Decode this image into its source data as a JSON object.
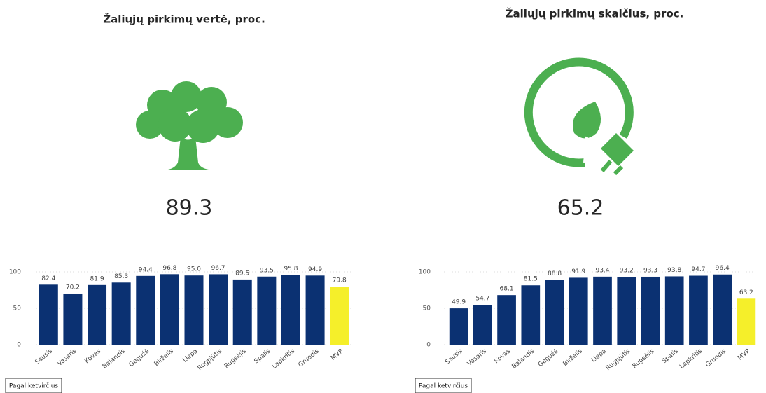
{
  "chart_data": [
    {
      "type": "bar",
      "title": "Žaliųjų pirkimų vertė, proc.",
      "kpi": 89.3,
      "button": "Pagal ketvirčius",
      "categories": [
        "Sausis",
        "Vasaris",
        "Kovas",
        "Balandis",
        "Gegužė",
        "Birželis",
        "Liepa",
        "Rugpjūtis",
        "Rugsėjis",
        "Spalis",
        "Lapkritis",
        "Gruodis",
        "MVP"
      ],
      "values": [
        82.4,
        70.2,
        81.9,
        85.3,
        94.4,
        96.8,
        95.0,
        96.7,
        89.5,
        93.5,
        95.8,
        94.9,
        79.8
      ],
      "value_labels": [
        "82.4",
        "70.2",
        "81.9",
        "85.3",
        "94.4",
        "96.8",
        "95.0",
        "96.7",
        "89.5",
        "93.5",
        "95.8",
        "94.9",
        "79.8"
      ],
      "colors": [
        "#0b3172",
        "#0b3172",
        "#0b3172",
        "#0b3172",
        "#0b3172",
        "#0b3172",
        "#0b3172",
        "#0b3172",
        "#0b3172",
        "#0b3172",
        "#0b3172",
        "#0b3172",
        "#f5ef2a"
      ],
      "ylim": [
        0,
        100
      ],
      "yticks": [
        0,
        50,
        100
      ],
      "grid": true
    },
    {
      "type": "bar",
      "title": "Žaliųjų pirkimų skaičius, proc.",
      "kpi": 65.2,
      "button": "Pagal ketvirčius",
      "categories": [
        "Sausis",
        "Vasaris",
        "Kovas",
        "Balandis",
        "Gegužė",
        "Birželis",
        "Liepa",
        "Rugpjūtis",
        "Rugsėjis",
        "Spalis",
        "Lapkritis",
        "Gruodis",
        "MVP"
      ],
      "values": [
        49.9,
        54.7,
        68.1,
        81.5,
        88.8,
        91.9,
        93.4,
        93.2,
        93.3,
        93.8,
        94.7,
        96.4,
        63.2
      ],
      "value_labels": [
        "49.9",
        "54.7",
        "68.1",
        "81.5",
        "88.8",
        "91.9",
        "93.4",
        "93.2",
        "93.3",
        "93.8",
        "94.7",
        "96.4",
        "63.2"
      ],
      "colors": [
        "#0b3172",
        "#0b3172",
        "#0b3172",
        "#0b3172",
        "#0b3172",
        "#0b3172",
        "#0b3172",
        "#0b3172",
        "#0b3172",
        "#0b3172",
        "#0b3172",
        "#0b3172",
        "#f5ef2a"
      ],
      "ylim": [
        0,
        100
      ],
      "yticks": [
        0,
        50,
        100
      ],
      "grid": true
    }
  ]
}
